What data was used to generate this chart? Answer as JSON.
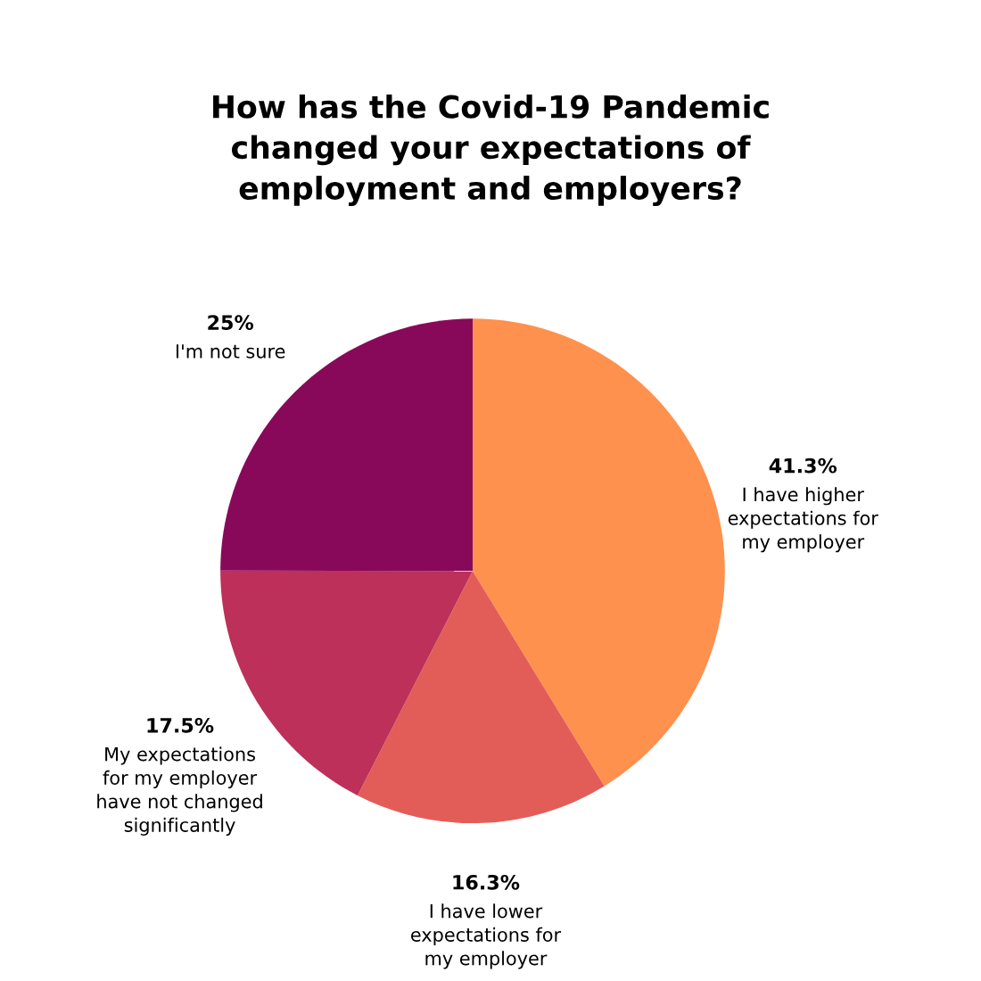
{
  "chart_data": {
    "type": "pie",
    "title": "How has the Covid-19 Pandemic\nchanged your expectations of\nemployment and employers?",
    "categories": [
      "I have higher\nexpectations for\nmy employer",
      "I have lower\nexpectations for\nmy employer",
      "My expectations\nfor my employer\nhave not changed\nsignificantly",
      "I'm not sure"
    ],
    "values": [
      41.3,
      16.3,
      17.5,
      25
    ],
    "value_labels": [
      "41.3%",
      "16.3%",
      "17.5%",
      "25%"
    ],
    "colors": [
      "#fe914e",
      "#e35d58",
      "#bc3059",
      "#88095a"
    ]
  }
}
